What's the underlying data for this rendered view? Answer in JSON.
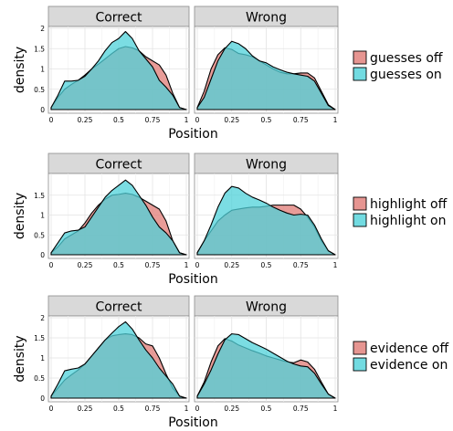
{
  "chart_data": [
    {
      "type": "area",
      "facets": [
        "Correct",
        "Wrong"
      ],
      "xlabel": "Position",
      "ylabel": "density",
      "xlim": [
        0,
        1
      ],
      "ylim": [
        0,
        2
      ],
      "x_ticks": [
        "0",
        "0.25",
        "0.5",
        "0.75",
        "1"
      ],
      "y_ticks": [
        {
          "value": 0,
          "label": "0"
        },
        {
          "value": 0.5,
          "label": "0.5"
        },
        {
          "value": 1,
          "label": "1"
        },
        {
          "value": 1.5,
          "label": "1.5"
        },
        {
          "value": 2,
          "label": "2"
        }
      ],
      "x": [
        0,
        0.05,
        0.1,
        0.15,
        0.2,
        0.25,
        0.3,
        0.35,
        0.4,
        0.45,
        0.5,
        0.55,
        0.6,
        0.65,
        0.7,
        0.75,
        0.8,
        0.85,
        0.9,
        0.95,
        1
      ],
      "series": [
        {
          "name": "guesses off",
          "color": "#E07B76",
          "Correct": [
            0.05,
            0.3,
            0.5,
            0.62,
            0.72,
            0.85,
            1.0,
            1.12,
            1.25,
            1.38,
            1.5,
            1.55,
            1.52,
            1.45,
            1.3,
            1.2,
            1.1,
            0.85,
            0.4,
            0.05,
            0.0
          ],
          "Wrong": [
            0.05,
            0.45,
            1.0,
            1.35,
            1.52,
            1.48,
            1.38,
            1.35,
            1.3,
            1.2,
            1.1,
            1.0,
            0.92,
            0.88,
            0.88,
            0.9,
            0.9,
            0.78,
            0.45,
            0.12,
            0.0
          ]
        },
        {
          "name": "guesses on",
          "color": "#4FD2DA",
          "Correct": [
            0.05,
            0.35,
            0.7,
            0.7,
            0.72,
            0.82,
            1.0,
            1.2,
            1.45,
            1.65,
            1.75,
            1.92,
            1.75,
            1.45,
            1.25,
            1.05,
            0.72,
            0.55,
            0.35,
            0.05,
            0.0
          ],
          "Wrong": [
            0.05,
            0.3,
            0.75,
            1.2,
            1.5,
            1.68,
            1.62,
            1.5,
            1.32,
            1.2,
            1.15,
            1.05,
            0.98,
            0.92,
            0.88,
            0.85,
            0.82,
            0.7,
            0.4,
            0.1,
            0.0
          ]
        }
      ],
      "legend": "right"
    },
    {
      "type": "area",
      "facets": [
        "Correct",
        "Wrong"
      ],
      "xlabel": "Position",
      "ylabel": "density",
      "xlim": [
        0,
        1
      ],
      "ylim": [
        0,
        2
      ],
      "x_ticks": [
        "0",
        "0.25",
        "0.5",
        "0.75",
        "1"
      ],
      "y_ticks": [
        {
          "value": 0,
          "label": "0"
        },
        {
          "value": 0.5,
          "label": "0.5"
        },
        {
          "value": 1,
          "label": "1"
        },
        {
          "value": 1.5,
          "label": "1.5"
        }
      ],
      "x": [
        0,
        0.05,
        0.1,
        0.15,
        0.2,
        0.25,
        0.3,
        0.35,
        0.4,
        0.45,
        0.5,
        0.55,
        0.6,
        0.65,
        0.7,
        0.75,
        0.8,
        0.85,
        0.9,
        0.95,
        1
      ],
      "series": [
        {
          "name": "highlight off",
          "color": "#E07B76",
          "Correct": [
            0.05,
            0.2,
            0.4,
            0.5,
            0.6,
            0.8,
            1.05,
            1.25,
            1.4,
            1.5,
            1.52,
            1.55,
            1.52,
            1.45,
            1.35,
            1.25,
            1.15,
            0.85,
            0.35,
            0.05,
            0.0
          ],
          "Wrong": [
            0.05,
            0.35,
            0.6,
            0.85,
            1.0,
            1.12,
            1.15,
            1.18,
            1.2,
            1.2,
            1.22,
            1.25,
            1.25,
            1.25,
            1.25,
            1.15,
            0.95,
            0.7,
            0.35,
            0.1,
            0.0
          ]
        },
        {
          "name": "highlight on",
          "color": "#4FD2DA",
          "Correct": [
            0.05,
            0.3,
            0.55,
            0.6,
            0.62,
            0.7,
            0.95,
            1.2,
            1.45,
            1.62,
            1.75,
            1.88,
            1.75,
            1.5,
            1.25,
            0.95,
            0.7,
            0.55,
            0.35,
            0.05,
            0.0
          ],
          "Wrong": [
            0.05,
            0.35,
            0.75,
            1.2,
            1.55,
            1.72,
            1.68,
            1.55,
            1.45,
            1.38,
            1.3,
            1.2,
            1.12,
            1.05,
            1.0,
            1.02,
            1.0,
            0.75,
            0.4,
            0.1,
            0.0
          ]
        }
      ],
      "legend": "right"
    },
    {
      "type": "area",
      "facets": [
        "Correct",
        "Wrong"
      ],
      "xlabel": "Position",
      "ylabel": "density",
      "xlim": [
        0,
        1
      ],
      "ylim": [
        0,
        2
      ],
      "x_ticks": [
        "0",
        "0.25",
        "0.5",
        "0.75",
        "1"
      ],
      "y_ticks": [
        {
          "value": 0,
          "label": "0"
        },
        {
          "value": 0.5,
          "label": "0.5"
        },
        {
          "value": 1,
          "label": "1"
        },
        {
          "value": 1.5,
          "label": "1.5"
        },
        {
          "value": 2,
          "label": "2"
        }
      ],
      "x": [
        0,
        0.05,
        0.1,
        0.15,
        0.2,
        0.25,
        0.3,
        0.35,
        0.4,
        0.45,
        0.5,
        0.55,
        0.6,
        0.65,
        0.7,
        0.75,
        0.8,
        0.85,
        0.9,
        0.95,
        1
      ],
      "series": [
        {
          "name": "evidence off",
          "color": "#E07B76",
          "Correct": [
            0.05,
            0.25,
            0.45,
            0.58,
            0.7,
            0.85,
            1.05,
            1.25,
            1.45,
            1.55,
            1.58,
            1.6,
            1.58,
            1.5,
            1.35,
            1.3,
            1.0,
            0.6,
            0.25,
            0.05,
            0.0
          ],
          "Wrong": [
            0.05,
            0.4,
            0.9,
            1.3,
            1.48,
            1.42,
            1.32,
            1.25,
            1.18,
            1.12,
            1.05,
            1.0,
            0.95,
            0.9,
            0.88,
            0.95,
            0.9,
            0.72,
            0.4,
            0.1,
            0.0
          ]
        },
        {
          "name": "evidence on",
          "color": "#4FD2DA",
          "Correct": [
            0.05,
            0.35,
            0.68,
            0.72,
            0.75,
            0.85,
            1.05,
            1.25,
            1.45,
            1.62,
            1.78,
            1.9,
            1.72,
            1.45,
            1.2,
            1.0,
            0.75,
            0.55,
            0.35,
            0.05,
            0.0
          ],
          "Wrong": [
            0.05,
            0.35,
            0.7,
            1.1,
            1.45,
            1.6,
            1.58,
            1.48,
            1.38,
            1.3,
            1.22,
            1.12,
            1.02,
            0.92,
            0.85,
            0.8,
            0.78,
            0.62,
            0.35,
            0.1,
            0.0
          ]
        }
      ],
      "legend": "right"
    }
  ]
}
